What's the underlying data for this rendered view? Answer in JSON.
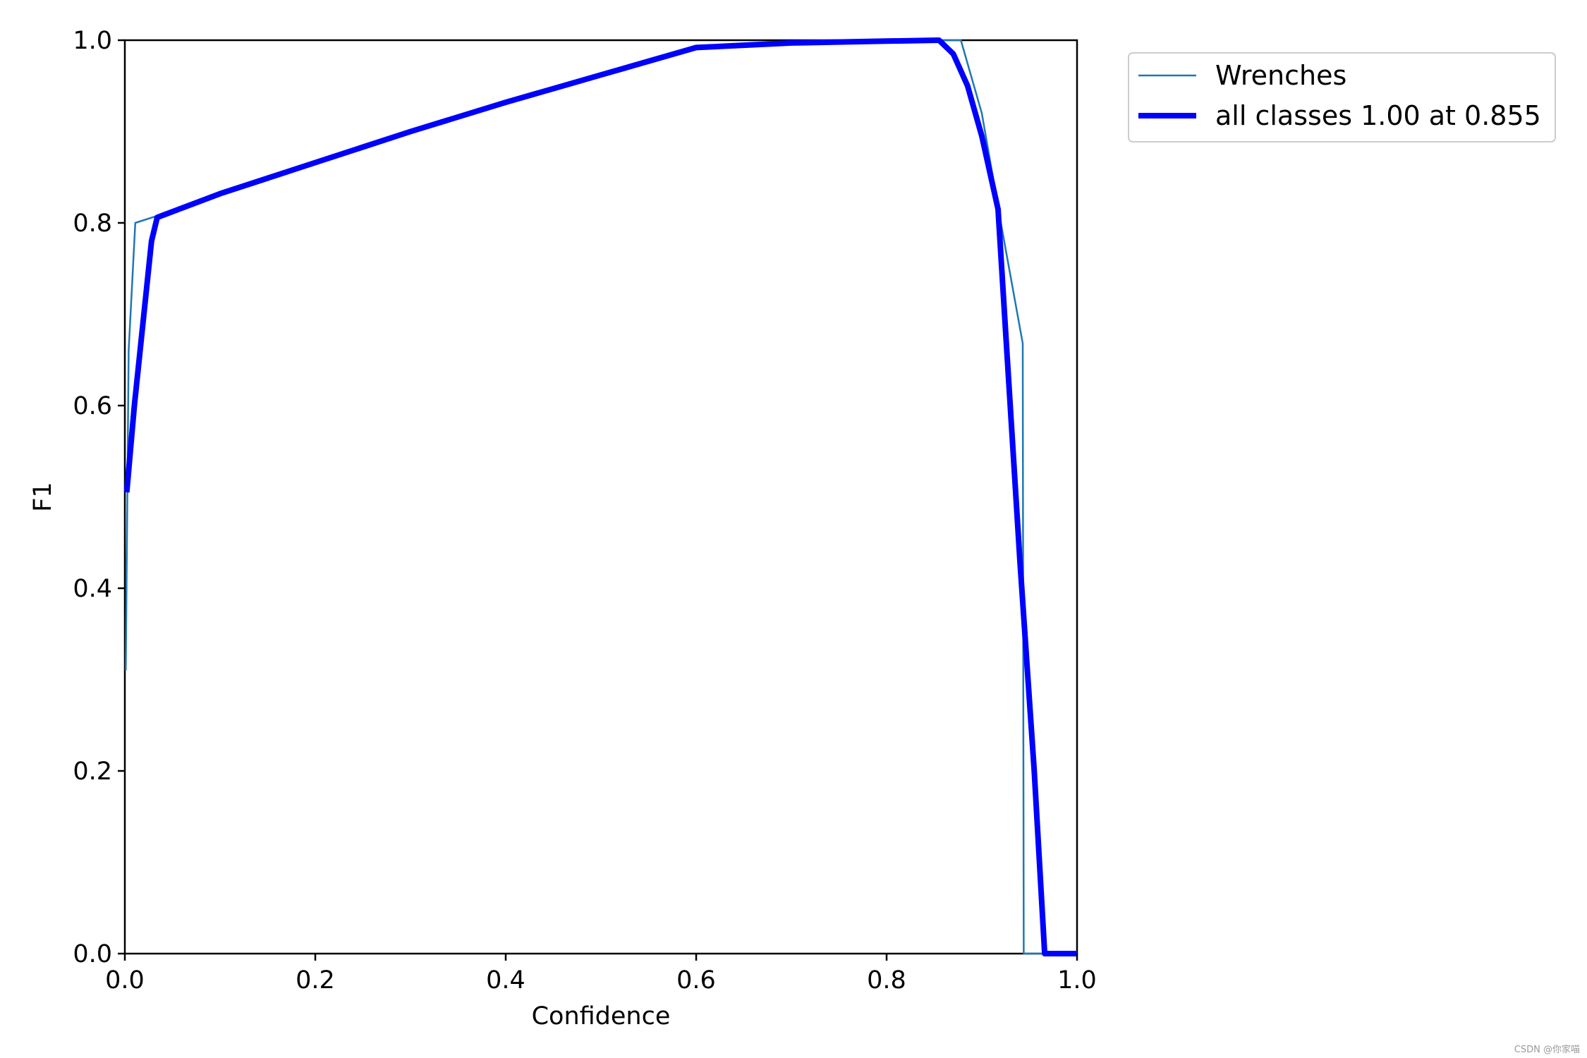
{
  "chart_data": {
    "type": "line",
    "xlabel": "Confidence",
    "ylabel": "F1",
    "xlim": [
      0,
      1
    ],
    "ylim": [
      0,
      1
    ],
    "x_ticks": [
      "0.0",
      "0.2",
      "0.4",
      "0.6",
      "0.8",
      "1.0"
    ],
    "y_ticks": [
      "0.0",
      "0.2",
      "0.4",
      "0.6",
      "0.8",
      "1.0"
    ],
    "grid": false,
    "legend_position": "upper-right-outside",
    "series": [
      {
        "name": "Wrenches",
        "color": "#1f77b4",
        "style": "thin",
        "points": [
          [
            0.001,
            0.31
          ],
          [
            0.004,
            0.66
          ],
          [
            0.011,
            0.8
          ],
          [
            0.035,
            0.808
          ],
          [
            0.1,
            0.832
          ],
          [
            0.2,
            0.866
          ],
          [
            0.3,
            0.9
          ],
          [
            0.4,
            0.932
          ],
          [
            0.5,
            0.963
          ],
          [
            0.6,
            0.992
          ],
          [
            0.7,
            0.998
          ],
          [
            0.8,
            1.0
          ],
          [
            0.878,
            1.0
          ],
          [
            0.9,
            0.92
          ],
          [
            0.92,
            0.8
          ],
          [
            0.943,
            0.668
          ],
          [
            0.944,
            0.0
          ],
          [
            1.0,
            0.0
          ]
        ]
      },
      {
        "name": "all classes 1.00 at 0.855",
        "color": "#0000ff",
        "style": "bold",
        "points": [
          [
            0.002,
            0.505
          ],
          [
            0.01,
            0.6
          ],
          [
            0.02,
            0.7
          ],
          [
            0.028,
            0.78
          ],
          [
            0.034,
            0.806
          ],
          [
            0.1,
            0.832
          ],
          [
            0.2,
            0.866
          ],
          [
            0.3,
            0.9
          ],
          [
            0.4,
            0.932
          ],
          [
            0.5,
            0.962
          ],
          [
            0.6,
            0.992
          ],
          [
            0.7,
            0.997
          ],
          [
            0.8,
            0.999
          ],
          [
            0.855,
            1.0
          ],
          [
            0.87,
            0.985
          ],
          [
            0.885,
            0.95
          ],
          [
            0.9,
            0.895
          ],
          [
            0.917,
            0.815
          ],
          [
            0.925,
            0.68
          ],
          [
            0.94,
            0.43
          ],
          [
            0.955,
            0.2
          ],
          [
            0.966,
            0.0
          ],
          [
            1.0,
            0.0
          ]
        ]
      }
    ]
  },
  "watermark": "CSDN @你家喵"
}
